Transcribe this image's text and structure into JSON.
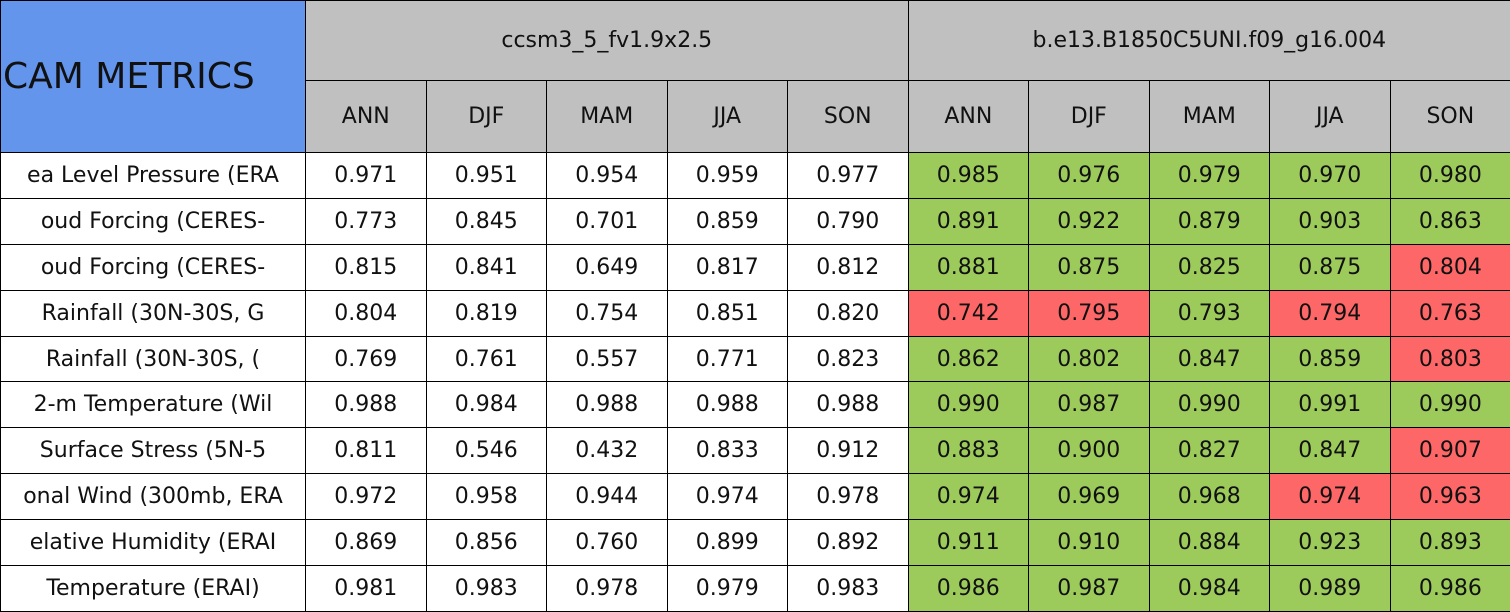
{
  "title": "CAM METRICS",
  "groups": [
    {
      "name": "ccsm3_5_fv1.9x2.5",
      "seasons": [
        "ANN",
        "DJF",
        "MAM",
        "JJA",
        "SON"
      ]
    },
    {
      "name": "b.e13.B1850C5UNI.f09_g16.004",
      "seasons": [
        "ANN",
        "DJF",
        "MAM",
        "JJA",
        "SON"
      ]
    }
  ],
  "rows": [
    {
      "label": "ea Level Pressure (ERA",
      "values": [
        "0.971",
        "0.951",
        "0.954",
        "0.959",
        "0.977",
        "0.985",
        "0.976",
        "0.979",
        "0.970",
        "0.980"
      ],
      "colors": [
        "#9dcb5b",
        "#9dcb5b",
        "#9dcb5b",
        "#9dcb5b",
        "#9dcb5b"
      ]
    },
    {
      "label": "oud Forcing (CERES-",
      "values": [
        "0.773",
        "0.845",
        "0.701",
        "0.859",
        "0.790",
        "0.891",
        "0.922",
        "0.879",
        "0.903",
        "0.863"
      ],
      "colors": [
        "#9dcb5b",
        "#9dcb5b",
        "#9dcb5b",
        "#9dcb5b",
        "#9dcb5b"
      ]
    },
    {
      "label": "oud Forcing (CERES-",
      "values": [
        "0.815",
        "0.841",
        "0.649",
        "0.817",
        "0.812",
        "0.881",
        "0.875",
        "0.825",
        "0.875",
        "0.804"
      ],
      "colors": [
        "#9dcb5b",
        "#9dcb5b",
        "#9dcb5b",
        "#9dcb5b",
        "#fe6767"
      ]
    },
    {
      "label": "Rainfall (30N-30S, G",
      "values": [
        "0.804",
        "0.819",
        "0.754",
        "0.851",
        "0.820",
        "0.742",
        "0.795",
        "0.793",
        "0.794",
        "0.763"
      ],
      "colors": [
        "#fe6767",
        "#fe6767",
        "#9dcb5b",
        "#fe6767",
        "#fe6767"
      ]
    },
    {
      "label": "Rainfall (30N-30S, (",
      "values": [
        "0.769",
        "0.761",
        "0.557",
        "0.771",
        "0.823",
        "0.862",
        "0.802",
        "0.847",
        "0.859",
        "0.803"
      ],
      "colors": [
        "#9dcb5b",
        "#9dcb5b",
        "#9dcb5b",
        "#9dcb5b",
        "#fe6767"
      ]
    },
    {
      "label": "2-m Temperature (Wil",
      "values": [
        "0.988",
        "0.984",
        "0.988",
        "0.988",
        "0.988",
        "0.990",
        "0.987",
        "0.990",
        "0.991",
        "0.990"
      ],
      "colors": [
        "#9dcb5b",
        "#9dcb5b",
        "#9dcb5b",
        "#9dcb5b",
        "#9dcb5b"
      ]
    },
    {
      "label": "Surface Stress (5N-5",
      "values": [
        "0.811",
        "0.546",
        "0.432",
        "0.833",
        "0.912",
        "0.883",
        "0.900",
        "0.827",
        "0.847",
        "0.907"
      ],
      "colors": [
        "#9dcb5b",
        "#9dcb5b",
        "#9dcb5b",
        "#9dcb5b",
        "#fe6767"
      ]
    },
    {
      "label": "onal Wind (300mb, ERA",
      "values": [
        "0.972",
        "0.958",
        "0.944",
        "0.974",
        "0.978",
        "0.974",
        "0.969",
        "0.968",
        "0.974",
        "0.963"
      ],
      "colors": [
        "#9dcb5b",
        "#9dcb5b",
        "#9dcb5b",
        "#fe6767",
        "#fe6767"
      ]
    },
    {
      "label": "elative Humidity (ERAI",
      "values": [
        "0.869",
        "0.856",
        "0.760",
        "0.899",
        "0.892",
        "0.911",
        "0.910",
        "0.884",
        "0.923",
        "0.893"
      ],
      "colors": [
        "#9dcb5b",
        "#9dcb5b",
        "#9dcb5b",
        "#9dcb5b",
        "#9dcb5b"
      ]
    },
    {
      "label": "Temperature (ERAI)",
      "values": [
        "0.981",
        "0.983",
        "0.978",
        "0.979",
        "0.983",
        "0.986",
        "0.987",
        "0.984",
        "0.989",
        "0.986"
      ],
      "colors": [
        "#9dcb5b",
        "#9dcb5b",
        "#9dcb5b",
        "#9dcb5b",
        "#9dcb5b"
      ]
    }
  ]
}
